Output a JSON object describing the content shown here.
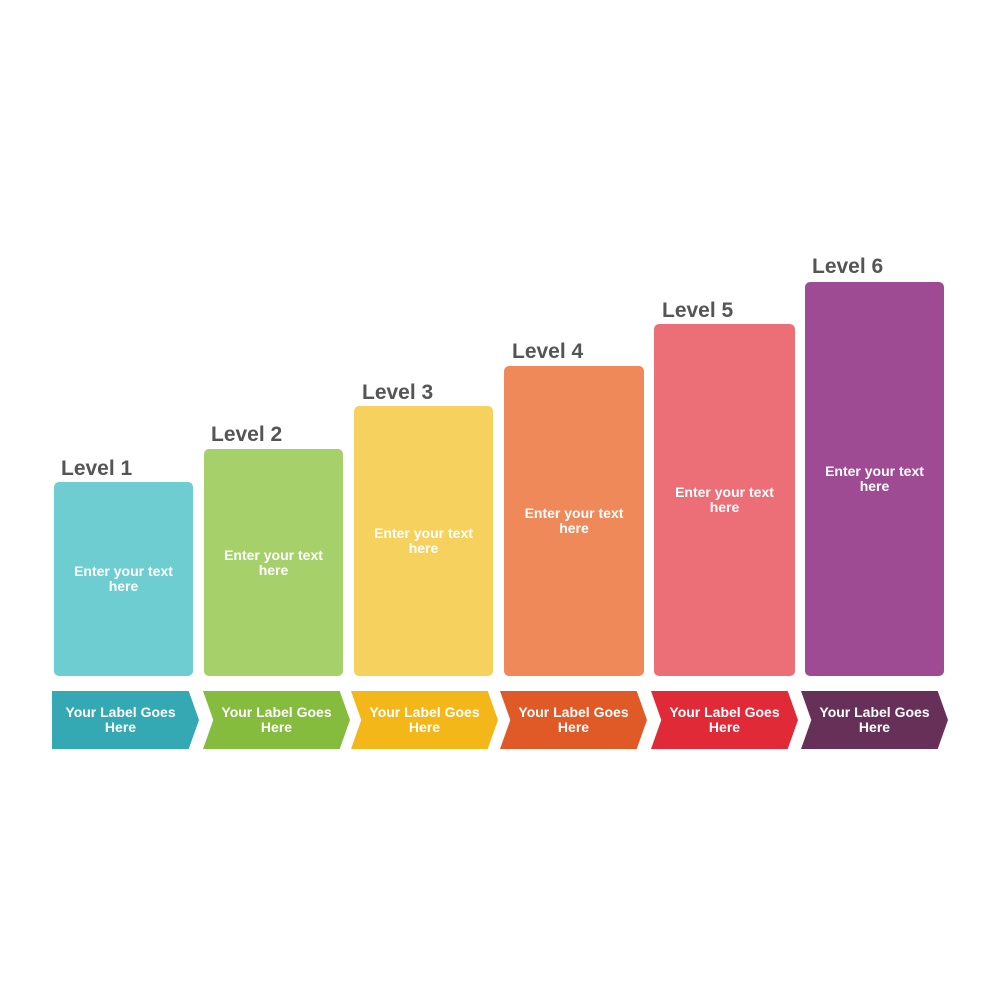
{
  "levels": [
    {
      "title": "Level 1",
      "text": "Enter your text here",
      "label": "Your Label Goes Here",
      "box_color": "#6ecdd1",
      "label_color": "#34a9b3"
    },
    {
      "title": "Level 2",
      "text": "Enter your text here",
      "label": "Your Label Goes Here",
      "box_color": "#a5d06a",
      "label_color": "#86bc3d"
    },
    {
      "title": "Level 3",
      "text": "Enter your text here",
      "label": "Your Label Goes Here",
      "box_color": "#f7d15e",
      "label_color": "#f4b71a"
    },
    {
      "title": "Level 4",
      "text": "Enter your text here",
      "label": "Your Label Goes Here",
      "box_color": "#f0895a",
      "label_color": "#e05a28"
    },
    {
      "title": "Level 5",
      "text": "Enter your text here",
      "label": "Your Label Goes Here",
      "box_color": "#ec6f78",
      "label_color": "#e02a38"
    },
    {
      "title": "Level 6",
      "text": "Enter your text here",
      "label": "Your Label Goes Here",
      "box_color": "#9e4b93",
      "label_color": "#673059"
    }
  ]
}
